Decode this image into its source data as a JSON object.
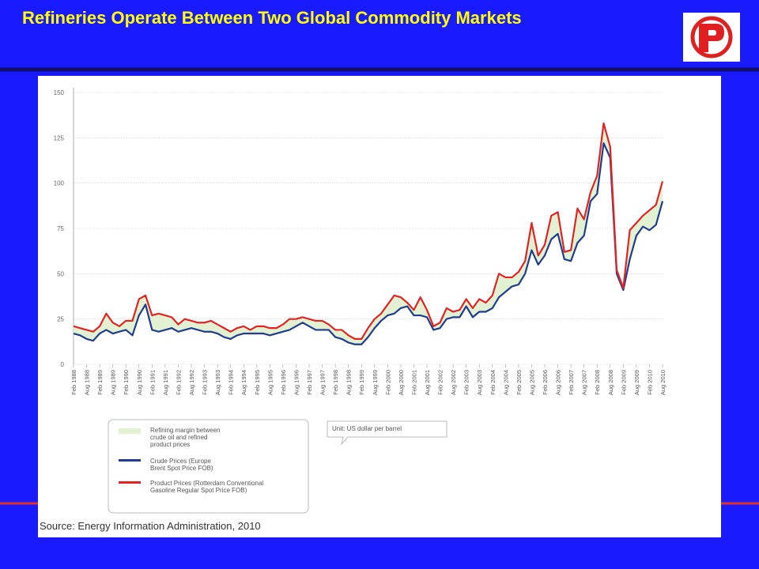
{
  "title": "Refineries Operate Between Two Global Commodity Markets",
  "source": "Source: Energy Information Administration, 2010",
  "chart_data": {
    "type": "line",
    "unit_note": "Unit: US dollar per barrel",
    "area_label": "Refining margin between crude oil and refined product prices",
    "area_color": "#e3f1d3",
    "categories": [
      "Feb 1988",
      null,
      "Aug 1988",
      null,
      "Feb 1989",
      null,
      "Aug 1989",
      null,
      "Feb 1990",
      null,
      "Aug 1990",
      null,
      "Feb 1991",
      null,
      "Aug 1991",
      null,
      "Feb 1992",
      null,
      "Aug 1992",
      null,
      "Feb 1993",
      null,
      "Aug 1993",
      null,
      "Feb 1994",
      null,
      "Aug 1994",
      null,
      "Feb 1995",
      null,
      "Aug 1995",
      null,
      "Feb 1996",
      null,
      "Aug 1996",
      null,
      "Feb 1997",
      null,
      "Aug 1997",
      null,
      "Feb 1998",
      null,
      "Aug 1998",
      null,
      "Feb 1999",
      null,
      "Aug 1999",
      null,
      "Feb 2000",
      null,
      "Aug 2000",
      null,
      "Feb 2001",
      null,
      "Aug 2001",
      null,
      "Feb 2002",
      null,
      "Aug 2002",
      null,
      "Feb 2003",
      null,
      "Aug 2003",
      null,
      "Feb 2004",
      null,
      "Aug 2004",
      null,
      "Feb 2005",
      null,
      "Aug 2005",
      null,
      "Feb 2006",
      null,
      "Aug 2006",
      null,
      "Feb 2007",
      null,
      "Aug 2007",
      null,
      "Feb 2008",
      null,
      "Aug 2008",
      null,
      "Feb 2009",
      null,
      "Aug 2009",
      null,
      "Feb 2010",
      null,
      "Aug 2010"
    ],
    "series": [
      {
        "name": "Crude Prices (Europe Brent Spot Price FOB)",
        "color": "#1f3d8c",
        "values": [
          17,
          16,
          14,
          13,
          17,
          19,
          17,
          18,
          19,
          16,
          27,
          33,
          19,
          18,
          19,
          20,
          18,
          19,
          20,
          19,
          18,
          18,
          17,
          15,
          14,
          16,
          17,
          17,
          17,
          17,
          16,
          17,
          18,
          19,
          21,
          23,
          21,
          19,
          19,
          19,
          15,
          14,
          12,
          11,
          11,
          15,
          20,
          24,
          27,
          28,
          31,
          32,
          27,
          27,
          26,
          19,
          20,
          25,
          26,
          26,
          32,
          26,
          29,
          29,
          31,
          37,
          40,
          43,
          44,
          50,
          63,
          55,
          60,
          69,
          72,
          58,
          57,
          67,
          71,
          90,
          94,
          122,
          114,
          50,
          41,
          58,
          71,
          76,
          74,
          77,
          90
        ]
      },
      {
        "name": "Product Prices (Rotterdam Conventional Gasoline Regular Spot Price FOB)",
        "color": "#e32222",
        "values": [
          21,
          20,
          19,
          18,
          21,
          28,
          23,
          21,
          24,
          24,
          36,
          38,
          27,
          28,
          27,
          26,
          22,
          25,
          24,
          23,
          23,
          24,
          22,
          20,
          18,
          20,
          21,
          19,
          21,
          21,
          20,
          20,
          22,
          25,
          25,
          26,
          25,
          24,
          24,
          22,
          19,
          19,
          16,
          14,
          14,
          20,
          25,
          28,
          33,
          38,
          37,
          34,
          30,
          37,
          30,
          21,
          23,
          31,
          29,
          30,
          36,
          31,
          36,
          34,
          38,
          50,
          48,
          48,
          51,
          57,
          78,
          60,
          66,
          82,
          84,
          62,
          63,
          86,
          80,
          95,
          104,
          133,
          120,
          52,
          42,
          74,
          78,
          82,
          85,
          88,
          101
        ]
      }
    ],
    "ylim": [
      0,
      150
    ],
    "yticks": [
      0,
      25,
      50,
      75,
      100,
      125,
      150
    ],
    "grid": true
  }
}
